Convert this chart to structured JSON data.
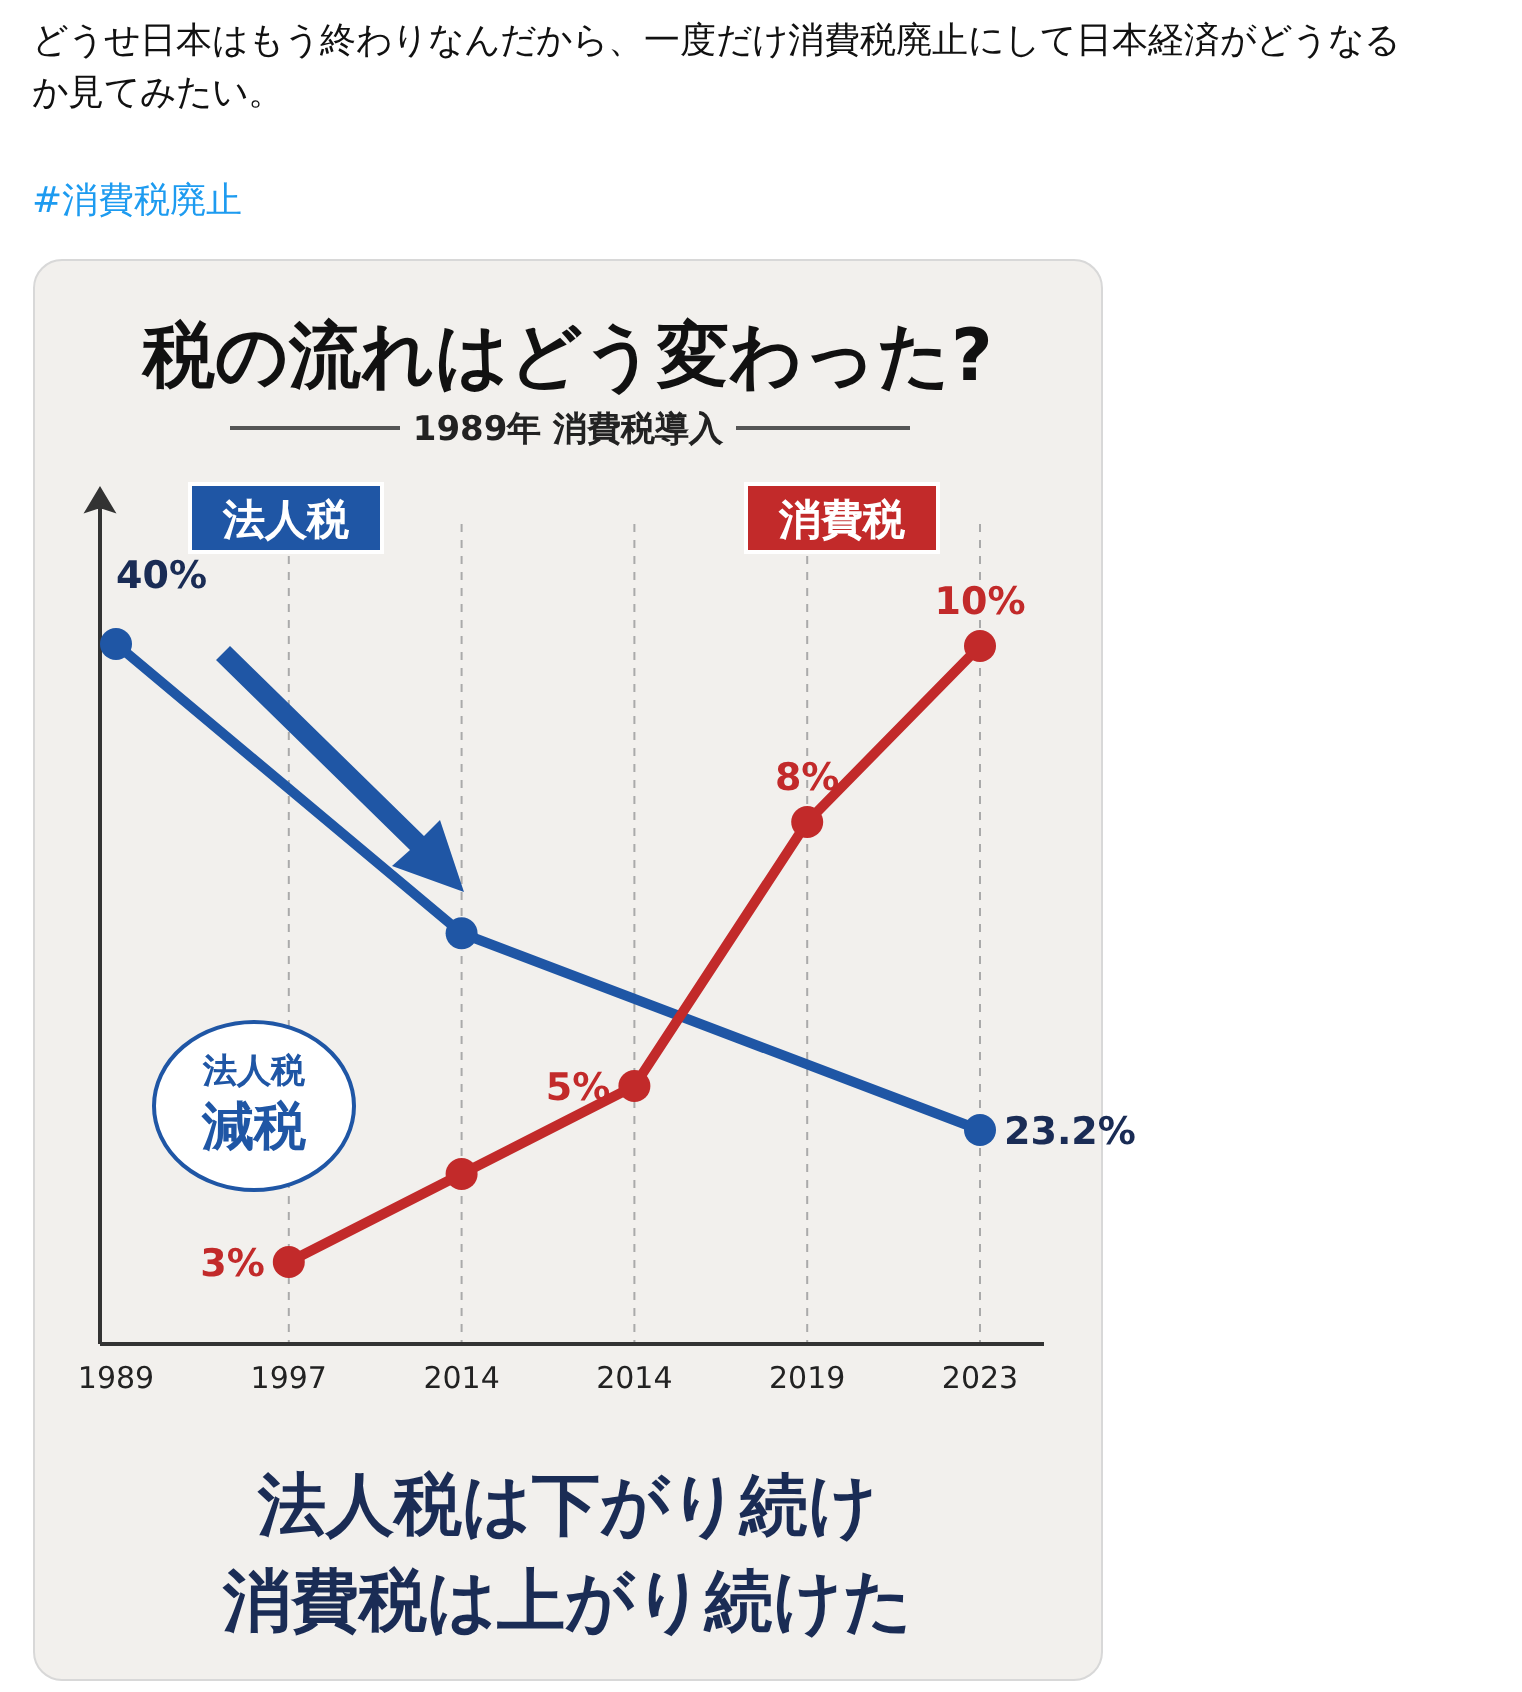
{
  "chart_data": {
    "type": "line",
    "title": "税の流れはどう変わった?",
    "subtitle": "1989年 消費税導入",
    "annotations": [
      "どうせ日本はもう終わりなんだから、一度だけ消費税廃止にして日本経済がどうなるか見てみたい。",
      "#消費税廃止",
      "法人税減税",
      "法人税は下がり続け",
      "消費税は上がり続けた"
    ],
    "categories": [
      "1989",
      "1997",
      "2014",
      "2014",
      "2019",
      "2023"
    ],
    "series": [
      {
        "name": "法人税",
        "color": "#1f56a5",
        "values": [
          40,
          null,
          30,
          null,
          null,
          23.2
        ],
        "value_labels": [
          "40%",
          null,
          null,
          null,
          null,
          "23.2%"
        ],
        "axis": "y2"
      },
      {
        "name": "消費税",
        "color": "#c22a2a",
        "values": [
          null,
          3,
          4,
          5,
          8,
          10
        ],
        "value_labels": [
          null,
          "3%",
          null,
          "5%",
          "8%",
          "10%"
        ]
      }
    ],
    "grid": "x",
    "marker": "circle",
    "line_style": "solid",
    "legend": false
  }
}
